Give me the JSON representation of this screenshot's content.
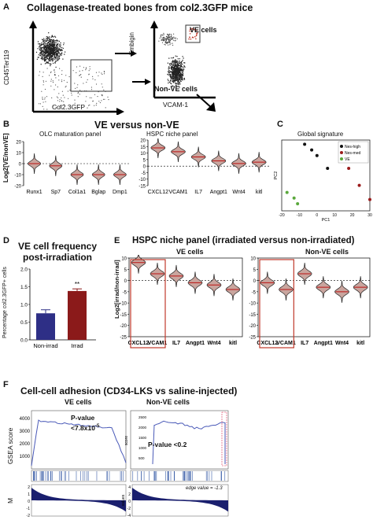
{
  "panelA": {
    "label": "A",
    "title": "Collagenase-treated bones from col2.3GFP mice",
    "plot1": {
      "ylabel": "CD45Ter119",
      "xlabel": "Col2.3GFP"
    },
    "plot2": {
      "ylabel": "Embigin",
      "xlabel": "VCAM-1",
      "gate_top": "VE cells",
      "gate_bottom": "Non-VE cells"
    }
  },
  "panelB": {
    "label": "B",
    "title": "VE versus non-VE",
    "ylabel": "Log2[VE/nonVE]",
    "left_sub": "OLC maturation panel",
    "right_sub": "HSPC niche panel",
    "left_yticks": [
      "20",
      "10",
      "0",
      "-10",
      "-20"
    ],
    "right_yticks": [
      "20",
      "15",
      "10",
      "5",
      "0",
      "-5",
      "-10",
      "-15"
    ]
  },
  "panelC": {
    "label": "C",
    "title": "Global signature",
    "xlabel": "PC1",
    "ylabel": "PC2",
    "xticks": [
      "-20",
      "-10",
      "0",
      "10",
      "20",
      "30"
    ],
    "legend": [
      "Nes-high",
      "Nes-med",
      "VE"
    ]
  },
  "panelD": {
    "label": "D",
    "title_line1": "VE cell frequency",
    "title_line2": "post-irradiation",
    "ylabel": "Percentage col2.3GFP+ cells",
    "yticks": [
      "2.0",
      "1.5",
      "1.0",
      "0.5",
      "0.0"
    ],
    "significance": "**"
  },
  "panelE": {
    "label": "E",
    "title": "HSPC niche  panel (irradiated versus non-irradiated)",
    "left_sub": "VE cells",
    "right_sub": "Non-VE cells",
    "ylabel": "Log2[irrad/non-irrad]",
    "yticks": [
      "10",
      "5",
      "0",
      "-5",
      "-10",
      "-15",
      "-20",
      "-25"
    ]
  },
  "panelF": {
    "label": "F",
    "title": "Cell-cell adhesion (CD34-LKS vs saline-injected)",
    "left_sub": "VE cells",
    "right_sub": "Non-VE cells",
    "left_pvalue_line1": "P-value",
    "left_pvalue_line2": "<7.8x10",
    "left_pvalue_exp": "-5",
    "right_pvalue": "P-value <0.2",
    "ylabel_top": "GSEA score",
    "left_yticks": [
      "4000",
      "3000",
      "2000",
      "1000"
    ],
    "right_score_label": "score",
    "right_yticks": [
      "2500",
      "2000",
      "1500",
      "1000",
      "500"
    ],
    "ylabel_bottom_left": "M",
    "left_bottom_yticks": [
      "2",
      "1",
      "0",
      "-1",
      "-2"
    ],
    "right_bottom_label": "values",
    "right_bottom_yticks": [
      "4",
      "2",
      "0",
      "-2",
      "-4"
    ],
    "edge_value": "edge value = -1.3"
  },
  "chart_data": [
    {
      "type": "violin",
      "panel": "B-left",
      "title": "OLC maturation panel",
      "ylabel": "Log2[VE/nonVE]",
      "categories": [
        "Runx1",
        "Sp7",
        "Col1a1",
        "Bglap",
        "Dmp1"
      ],
      "values": [
        0,
        -2,
        -10,
        -10,
        -10
      ],
      "ylim": [
        -20,
        20
      ]
    },
    {
      "type": "violin",
      "panel": "B-right",
      "title": "HSPC niche panel",
      "categories": [
        "CXCL12",
        "VCAM1",
        "IL7",
        "Angpt1",
        "Wnt4",
        "kitl"
      ],
      "values": [
        14,
        11,
        7,
        4,
        2,
        3
      ],
      "ylim": [
        -15,
        20
      ]
    },
    {
      "type": "scatter",
      "panel": "C",
      "title": "Global signature",
      "xlabel": "PC1",
      "ylabel": "PC2",
      "xlim": [
        -20,
        30
      ],
      "series": [
        {
          "name": "Nes-high",
          "color": "#111111",
          "x": [
            -7,
            -3,
            0,
            6
          ],
          "y": [
            22,
            18,
            14,
            5
          ]
        },
        {
          "name": "Nes-med",
          "color": "#9b1b1b",
          "x": [
            18,
            24,
            30
          ],
          "y": [
            5,
            -7,
            -17
          ]
        },
        {
          "name": "VE",
          "color": "#5aa83c",
          "x": [
            -17,
            -13,
            -11
          ],
          "y": [
            -12,
            -16,
            -20
          ]
        }
      ]
    },
    {
      "type": "bar",
      "panel": "D",
      "title": "VE cell frequency post-irradiation",
      "ylabel": "Percentage col2.3GFP+ cells",
      "categories": [
        "Non-irrad",
        "Irrad"
      ],
      "values": [
        0.75,
        1.38
      ],
      "errors": [
        0.1,
        0.06
      ],
      "colors": [
        "#2e2f86",
        "#8b1a1a"
      ],
      "ylim": [
        0,
        2.0
      ]
    },
    {
      "type": "violin",
      "panel": "E-left",
      "title": "VE cells",
      "ylabel": "Log2[irrad/non-irrad]",
      "categories": [
        "CXCL12",
        "VCAM1",
        "IL7",
        "Angpt1",
        "Wnt4",
        "kitl"
      ],
      "values": [
        8,
        3,
        2,
        -1,
        -2,
        -4
      ],
      "ylim": [
        -25,
        10
      ]
    },
    {
      "type": "violin",
      "panel": "E-right",
      "title": "Non-VE cells",
      "categories": [
        "CXCL12",
        "VCAM1",
        "IL7",
        "Angpt1",
        "Wnt4",
        "kitl"
      ],
      "values": [
        -1,
        -4,
        3,
        -3,
        -5,
        -3
      ],
      "ylim": [
        -25,
        10
      ]
    },
    {
      "type": "line",
      "panel": "F-left",
      "title": "VE cells",
      "ylabel": "GSEA score",
      "note": "running enrichment score curve peaking near 4000"
    },
    {
      "type": "line",
      "panel": "F-right",
      "title": "Non-VE cells",
      "note": "running enrichment score curve near 2500"
    }
  ]
}
